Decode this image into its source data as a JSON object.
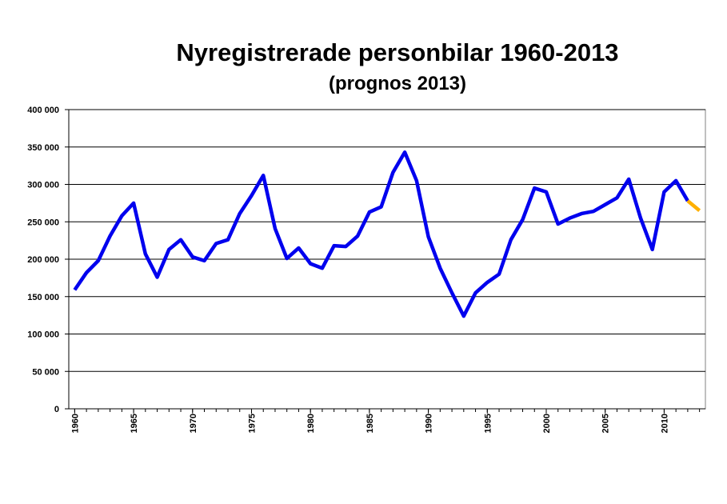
{
  "chart_data": {
    "type": "line",
    "title": "Nyregistrerade personbilar 1960-2013",
    "subtitle": "(prognos 2013)",
    "x": [
      1960,
      1961,
      1962,
      1963,
      1964,
      1965,
      1966,
      1967,
      1968,
      1969,
      1970,
      1971,
      1972,
      1973,
      1974,
      1975,
      1976,
      1977,
      1978,
      1979,
      1980,
      1981,
      1982,
      1983,
      1984,
      1985,
      1986,
      1987,
      1988,
      1989,
      1990,
      1991,
      1992,
      1993,
      1994,
      1995,
      1996,
      1997,
      1998,
      1999,
      2000,
      2001,
      2002,
      2003,
      2004,
      2005,
      2006,
      2007,
      2008,
      2009,
      2010,
      2011,
      2012,
      2013
    ],
    "series": [
      {
        "color": "#0000ee",
        "values": [
          159000,
          182000,
          198000,
          231000,
          258000,
          275000,
          207000,
          176000,
          213000,
          226000,
          203000,
          198000,
          221000,
          226000,
          261000,
          285000,
          312000,
          241000,
          201000,
          215000,
          194000,
          188000,
          218000,
          217000,
          231000,
          263000,
          270000,
          316000,
          343000,
          305000,
          230000,
          188000,
          155000,
          124000,
          155000,
          169000,
          180000,
          226000,
          253000,
          295000,
          290000,
          247000,
          255000,
          261000,
          264000,
          273000,
          282000,
          307000,
          255000,
          213000,
          290000,
          305000,
          278000,
          null
        ]
      },
      {
        "color": "#ffb000",
        "values": [
          null,
          null,
          null,
          null,
          null,
          null,
          null,
          null,
          null,
          null,
          null,
          null,
          null,
          null,
          null,
          null,
          null,
          null,
          null,
          null,
          null,
          null,
          null,
          null,
          null,
          null,
          null,
          null,
          null,
          null,
          null,
          null,
          null,
          null,
          null,
          null,
          null,
          null,
          null,
          null,
          null,
          null,
          null,
          null,
          null,
          null,
          null,
          null,
          null,
          null,
          null,
          null,
          278000,
          265000
        ]
      }
    ],
    "xlim": [
      1959.5,
      2013.5
    ],
    "xticks": [
      1960,
      1965,
      1970,
      1975,
      1980,
      1985,
      1990,
      1995,
      2000,
      2005,
      2010
    ],
    "ylim": [
      0,
      400000
    ],
    "yticks": [
      0,
      {
        "value": 50000,
        "label": "50 000"
      },
      {
        "value": 100000,
        "label": "100 000"
      },
      {
        "value": 150000,
        "label": "150 000"
      },
      {
        "value": 200000,
        "label": "200 000"
      },
      {
        "value": 250000,
        "label": "250 000"
      },
      {
        "value": 300000,
        "label": "300 000"
      },
      {
        "value": 350000,
        "label": "350 000"
      },
      {
        "value": 400000,
        "label": "400 000"
      }
    ],
    "grid": true
  }
}
